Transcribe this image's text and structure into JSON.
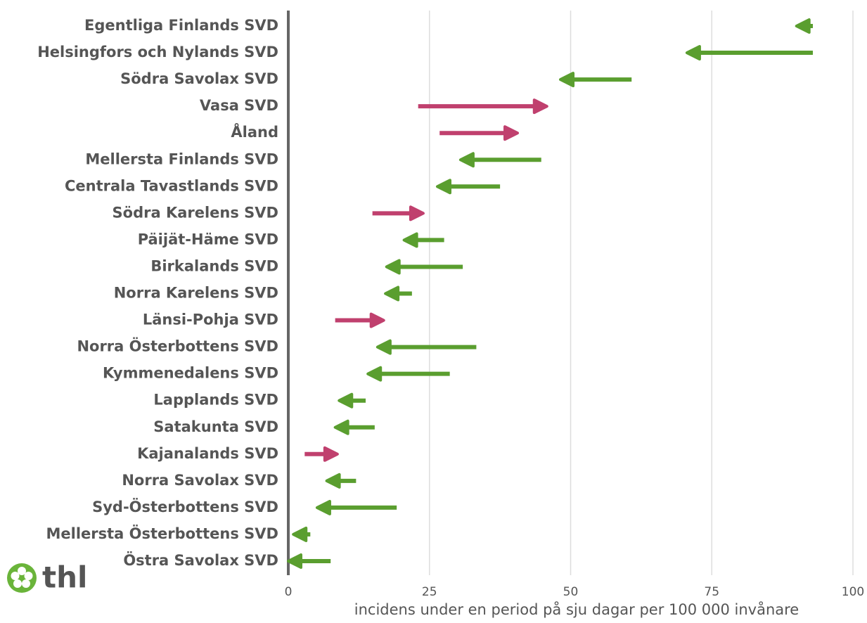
{
  "chart_data": {
    "type": "arrow",
    "categories": [
      "Egentliga Finlands SVD",
      "Helsingfors och Nylands SVD",
      "Södra Savolax SVD",
      "Vasa SVD",
      "Åland",
      "Mellersta Finlands SVD",
      "Centrala Tavastlands SVD",
      "Södra Karelens SVD",
      "Päijät-Häme SVD",
      "Birkalands SVD",
      "Norra Karelens SVD",
      "Länsi-Pohja SVD",
      "Norra Österbottens SVD",
      "Kymmenedalens SVD",
      "Lapplands SVD",
      "Satakunta SVD",
      "Kajanalands SVD",
      "Norra Savolax SVD",
      "Syd-Österbottens SVD",
      "Mellersta Österbottens SVD",
      "Östra Savolax SVD"
    ],
    "start": [
      92.9,
      92.9,
      60.8,
      23.0,
      26.8,
      44.8,
      37.5,
      14.9,
      27.6,
      30.9,
      21.9,
      8.3,
      33.3,
      28.6,
      13.7,
      15.3,
      2.9,
      12.0,
      19.2,
      3.9,
      7.5
    ],
    "end": [
      90.0,
      70.6,
      48.2,
      45.8,
      40.6,
      30.5,
      26.4,
      23.9,
      20.5,
      17.4,
      17.2,
      16.9,
      15.8,
      14.1,
      9.0,
      8.3,
      8.7,
      6.8,
      5.1,
      0.9,
      0.0
    ],
    "colors": {
      "increase": "#c0406e",
      "decrease": "#5a9e2f"
    },
    "xlim": [
      0,
      100
    ],
    "xticks": [
      0,
      25,
      50,
      75,
      100
    ],
    "grid": true,
    "xlabel": "incidens under en period på sju dagar per 100 000 invånare",
    "logo": "thl"
  }
}
